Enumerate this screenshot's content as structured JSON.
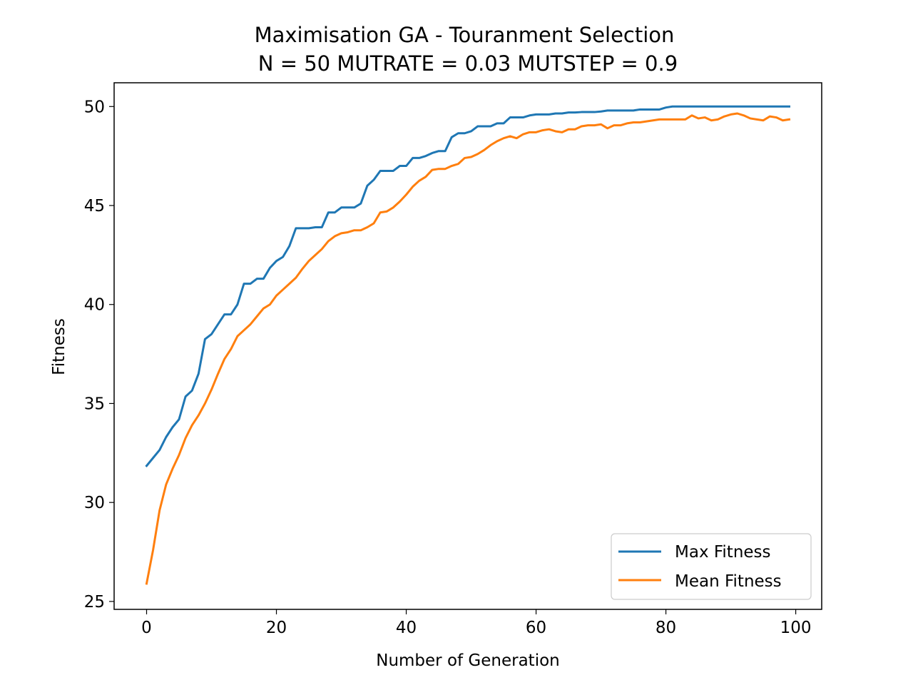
{
  "chart_data": {
    "type": "line",
    "title": "Maximisation GA - Touranment Selection",
    "subtitle": "N = 50 MUTRATE = 0.03 MUTSTEP = 0.9",
    "xlabel": "Number of Generation",
    "ylabel": "Fitness",
    "xlim": [
      -5,
      104
    ],
    "ylim": [
      24.6,
      51.2
    ],
    "xticks": [
      0,
      20,
      40,
      60,
      80,
      100
    ],
    "yticks": [
      25,
      30,
      35,
      40,
      45,
      50
    ],
    "grid": false,
    "legend_position": "bottom-right",
    "series": [
      {
        "name": "Max Fitness",
        "color": "#1f77b4",
        "values": [
          31.85,
          32.25,
          32.65,
          33.3,
          33.8,
          34.2,
          35.35,
          35.65,
          36.5,
          38.25,
          38.5,
          39.0,
          39.5,
          39.5,
          40.0,
          41.05,
          41.05,
          41.3,
          41.3,
          41.85,
          42.2,
          42.4,
          42.95,
          43.85,
          43.85,
          43.85,
          43.9,
          43.9,
          44.65,
          44.65,
          44.9,
          44.9,
          44.9,
          45.1,
          46.0,
          46.3,
          46.75,
          46.75,
          46.75,
          47.0,
          47.0,
          47.4,
          47.4,
          47.5,
          47.65,
          47.75,
          47.75,
          48.45,
          48.65,
          48.65,
          48.75,
          49.0,
          49.0,
          49.0,
          49.15,
          49.15,
          49.45,
          49.45,
          49.45,
          49.55,
          49.6,
          49.6,
          49.6,
          49.65,
          49.65,
          49.7,
          49.7,
          49.72,
          49.72,
          49.72,
          49.75,
          49.8,
          49.8,
          49.8,
          49.8,
          49.8,
          49.85,
          49.85,
          49.85,
          49.85,
          49.95,
          50.0,
          50.0,
          50.0,
          50.0,
          50.0,
          50.0,
          50.0,
          50.0,
          50.0,
          50.0,
          50.0,
          50.0,
          50.0,
          50.0,
          50.0,
          50.0,
          50.0,
          50.0,
          50.0
        ]
      },
      {
        "name": "Mean Fitness",
        "color": "#ff7f0e",
        "values": [
          25.9,
          27.6,
          29.6,
          30.9,
          31.7,
          32.4,
          33.25,
          33.9,
          34.4,
          35.0,
          35.7,
          36.5,
          37.25,
          37.75,
          38.4,
          38.7,
          39.0,
          39.4,
          39.8,
          40.0,
          40.45,
          40.75,
          41.05,
          41.35,
          41.8,
          42.2,
          42.5,
          42.8,
          43.2,
          43.45,
          43.6,
          43.65,
          43.75,
          43.75,
          43.9,
          44.1,
          44.65,
          44.7,
          44.9,
          45.2,
          45.55,
          45.95,
          46.25,
          46.45,
          46.8,
          46.85,
          46.85,
          47.0,
          47.1,
          47.4,
          47.45,
          47.6,
          47.8,
          48.05,
          48.25,
          48.4,
          48.5,
          48.4,
          48.6,
          48.7,
          48.7,
          48.8,
          48.85,
          48.75,
          48.7,
          48.85,
          48.85,
          49.0,
          49.05,
          49.05,
          49.1,
          48.9,
          49.05,
          49.05,
          49.15,
          49.2,
          49.2,
          49.25,
          49.3,
          49.35,
          49.35,
          49.35,
          49.35,
          49.35,
          49.55,
          49.4,
          49.45,
          49.3,
          49.35,
          49.5,
          49.6,
          49.65,
          49.55,
          49.4,
          49.35,
          49.3,
          49.5,
          49.45,
          49.3,
          49.35
        ]
      }
    ]
  }
}
